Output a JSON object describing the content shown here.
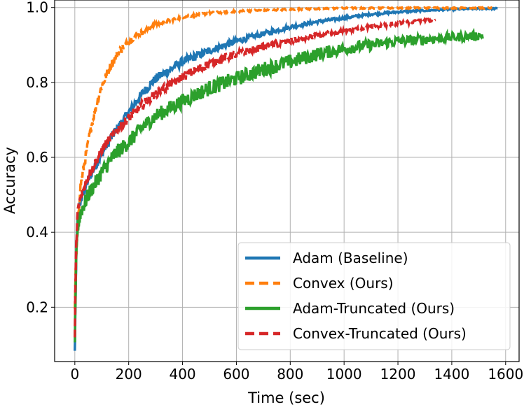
{
  "chart_data": {
    "type": "line",
    "xlabel": "Time (sec)",
    "ylabel": "Accuracy",
    "xlim": [
      -75,
      1650
    ],
    "ylim": [
      0.055,
      1.02
    ],
    "xticks": [
      "0",
      "200",
      "400",
      "600",
      "800",
      "1000",
      "1200",
      "1400",
      "1600"
    ],
    "yticks": [
      "0.2",
      "0.4",
      "0.6",
      "0.8",
      "1.0"
    ],
    "grid": true,
    "legend_position": "lower-right",
    "series": [
      {
        "name": "Adam (Baseline)",
        "color": "#1f77b4",
        "dash": "solid",
        "noise": 0.012,
        "x": [
          0,
          2,
          5,
          10,
          20,
          50,
          100,
          150,
          200,
          250,
          300,
          400,
          500,
          600,
          700,
          800,
          900,
          1000,
          1100,
          1200,
          1300,
          1400,
          1500,
          1570
        ],
        "y": [
          0.08,
          0.2,
          0.33,
          0.43,
          0.48,
          0.54,
          0.61,
          0.67,
          0.72,
          0.77,
          0.81,
          0.855,
          0.885,
          0.91,
          0.93,
          0.948,
          0.962,
          0.972,
          0.982,
          0.988,
          0.992,
          0.995,
          0.997,
          0.997
        ]
      },
      {
        "name": "Convex (Ours)",
        "color": "#ff7f0e",
        "dash": "dashed",
        "noise": 0.012,
        "x": [
          0,
          3,
          10,
          20,
          40,
          60,
          80,
          100,
          130,
          160,
          200,
          250,
          300,
          400,
          500,
          600,
          800,
          1000,
          1200,
          1400,
          1550
        ],
        "y": [
          0.2,
          0.3,
          0.4,
          0.52,
          0.6,
          0.68,
          0.74,
          0.79,
          0.84,
          0.88,
          0.91,
          0.935,
          0.955,
          0.975,
          0.985,
          0.99,
          0.995,
          0.998,
          0.999,
          0.999,
          0.999
        ]
      },
      {
        "name": "Adam-Truncated (Ours)",
        "color": "#2ca02c",
        "dash": "solid",
        "noise": 0.02,
        "x": [
          0,
          2,
          5,
          10,
          20,
          50,
          100,
          150,
          200,
          250,
          300,
          400,
          500,
          600,
          700,
          800,
          900,
          1000,
          1100,
          1200,
          1300,
          1400,
          1500,
          1515
        ],
        "y": [
          0.1,
          0.2,
          0.32,
          0.41,
          0.45,
          0.5,
          0.56,
          0.61,
          0.64,
          0.68,
          0.71,
          0.75,
          0.785,
          0.81,
          0.835,
          0.855,
          0.875,
          0.89,
          0.9,
          0.91,
          0.915,
          0.92,
          0.925,
          0.925
        ]
      },
      {
        "name": "Convex-Truncated (Ours)",
        "color": "#d62728",
        "dash": "dashed",
        "noise": 0.012,
        "x": [
          0,
          2,
          5,
          10,
          20,
          50,
          100,
          150,
          200,
          250,
          300,
          400,
          500,
          600,
          700,
          800,
          900,
          1000,
          1100,
          1200,
          1300,
          1340
        ],
        "y": [
          0.12,
          0.25,
          0.36,
          0.45,
          0.49,
          0.55,
          0.62,
          0.67,
          0.705,
          0.74,
          0.77,
          0.815,
          0.85,
          0.875,
          0.895,
          0.91,
          0.925,
          0.937,
          0.948,
          0.957,
          0.965,
          0.967
        ]
      }
    ]
  }
}
